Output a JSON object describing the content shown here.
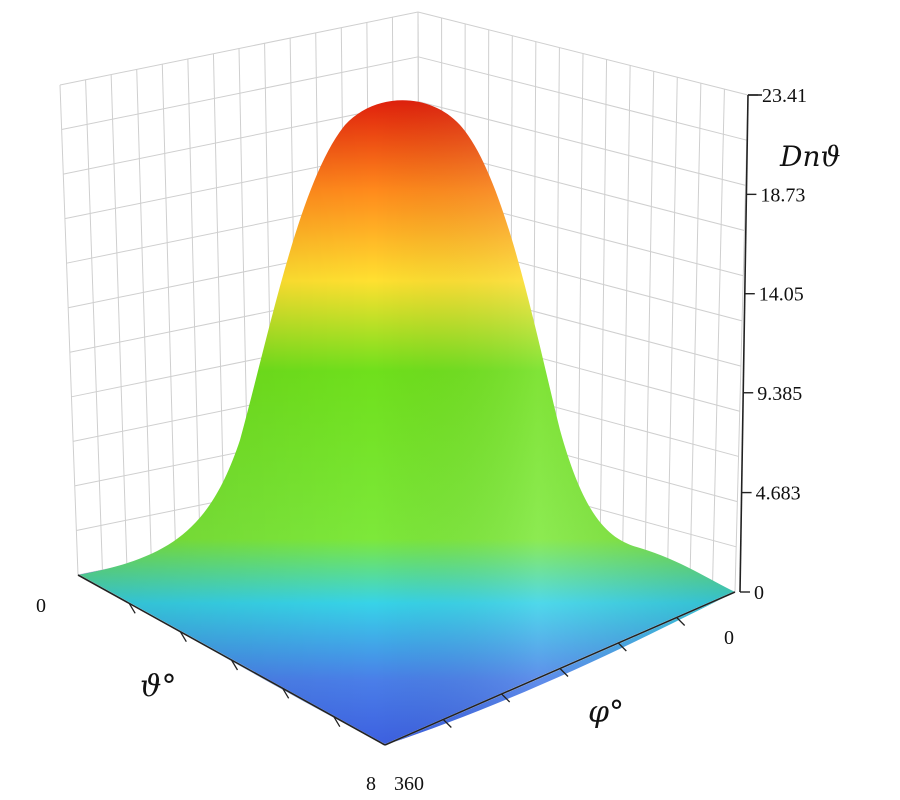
{
  "chart_data": {
    "type": "surface3d",
    "z_label": "Dnϑ",
    "x_label": "ϑ°",
    "y_label": "φ°",
    "z_ticks": [
      "0",
      "4.683",
      "9.385",
      "14.05",
      "18.73",
      "23.41"
    ],
    "z_range": [
      0,
      23.41
    ],
    "x_ticks": [
      "0",
      "8"
    ],
    "y_ticks": [
      "0",
      "360"
    ],
    "peak_value": 23.41,
    "grid": true,
    "colormap": [
      "#3d60e0",
      "#37d3e8",
      "#6fe01c",
      "#ffe030",
      "#ff8a1c",
      "#e0200c"
    ]
  }
}
